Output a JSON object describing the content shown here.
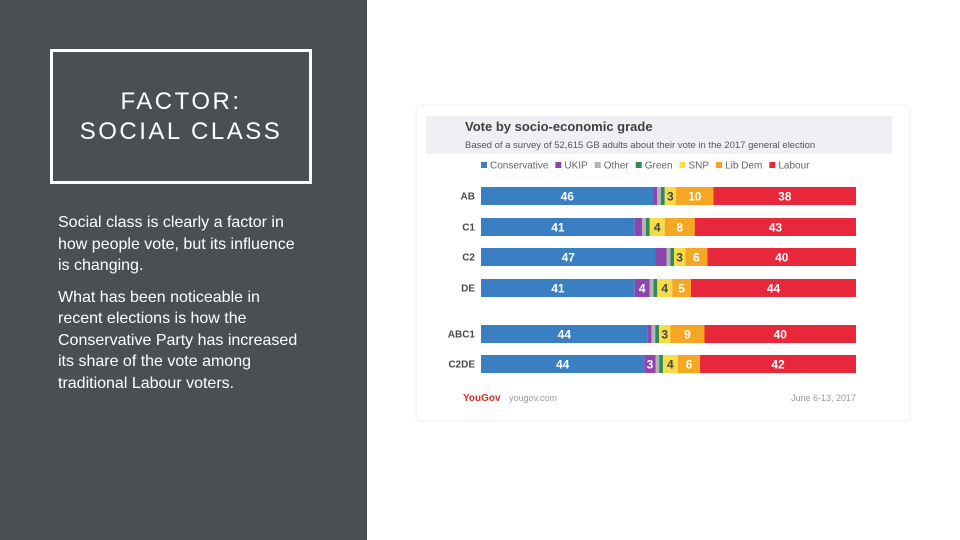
{
  "slide": {
    "title_line1": "FACTOR:",
    "title_line2": "SOCIAL CLASS",
    "paragraph1": "Social class is clearly a factor in how people vote, but its influence is changing.",
    "paragraph2": "What has been noticeable in recent elections is how the Conservative Party has increased its share of the vote among traditional Labour voters."
  },
  "chart_data": {
    "type": "bar",
    "stacked": true,
    "orientation": "horizontal",
    "title": "Vote by socio-economic grade",
    "subtitle": "Based of a survey of 52,615 GB adults about their vote in the 2017 general election",
    "categories": [
      "AB",
      "C1",
      "C2",
      "DE",
      "ABC1",
      "C2DE"
    ],
    "series": [
      {
        "name": "Conservative",
        "color": "#3a7fc1",
        "values": [
          46,
          41,
          47,
          41,
          44,
          44
        ]
      },
      {
        "name": "UKIP",
        "color": "#8e44ad",
        "values": [
          1,
          2,
          3,
          4,
          1,
          3
        ]
      },
      {
        "name": "Other",
        "color": "#b3b3b3",
        "values": [
          1,
          1,
          1,
          1,
          1,
          1
        ]
      },
      {
        "name": "Green",
        "color": "#2e8b57",
        "values": [
          1,
          1,
          1,
          1,
          1,
          1
        ]
      },
      {
        "name": "SNP",
        "color": "#f7dc4a",
        "values": [
          3,
          4,
          3,
          4,
          3,
          4
        ]
      },
      {
        "name": "Lib Dem",
        "color": "#f5a623",
        "values": [
          10,
          8,
          6,
          5,
          9,
          6
        ]
      },
      {
        "name": "Labour",
        "color": "#e8283a",
        "values": [
          38,
          43,
          40,
          44,
          40,
          42
        ]
      }
    ],
    "labels": [
      {
        "Conservative": "46",
        "SNP": "3",
        "Lib Dem": "10",
        "Labour": "38"
      },
      {
        "Conservative": "41",
        "SNP": "4",
        "Lib Dem": "8",
        "Labour": "43"
      },
      {
        "Conservative": "47",
        "SNP": "3",
        "Lib Dem": "6",
        "Labour": "40"
      },
      {
        "Conservative": "41",
        "UKIP": "4",
        "SNP": "4",
        "Lib Dem": "5",
        "Labour": "44"
      },
      {
        "Conservative": "44",
        "SNP": "3",
        "Lib Dem": "9",
        "Labour": "40"
      },
      {
        "Conservative": "44",
        "UKIP": "3",
        "SNP": "4",
        "Lib Dem": "6",
        "Labour": "42"
      }
    ],
    "xlim": [
      0,
      100
    ],
    "grid": false,
    "legend": "top",
    "source": "yougov.com",
    "brand": "YouGov",
    "date": "June 6-13, 2017"
  }
}
